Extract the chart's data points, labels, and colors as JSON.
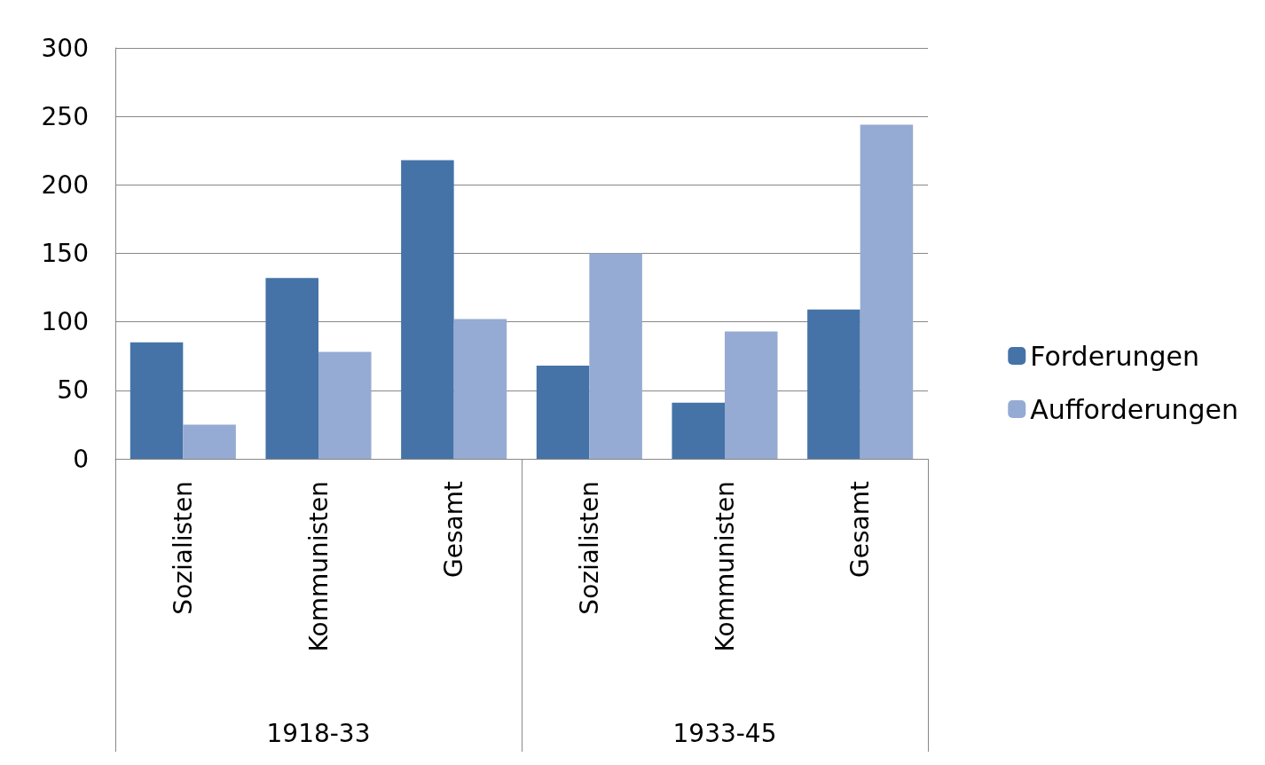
{
  "chart_data": {
    "type": "bar",
    "categories": [
      "Sozialisten",
      "Kommunisten",
      "Gesamt",
      "Sozialisten",
      "Kommunisten",
      "Gesamt"
    ],
    "series": [
      {
        "name": "Forderungen",
        "color": "#4573a7",
        "values": [
          85,
          132,
          218,
          68,
          41,
          109
        ]
      },
      {
        "name": "Aufforderungen",
        "color": "#95abd3",
        "values": [
          25,
          78,
          102,
          150,
          93,
          244
        ]
      }
    ],
    "annotations": [
      "1918-33",
      "1933-45"
    ],
    "ylim": [
      0,
      300
    ],
    "yticks": [
      0,
      50,
      100,
      150,
      200,
      250,
      300
    ],
    "grid": "y",
    "legend": "right"
  }
}
